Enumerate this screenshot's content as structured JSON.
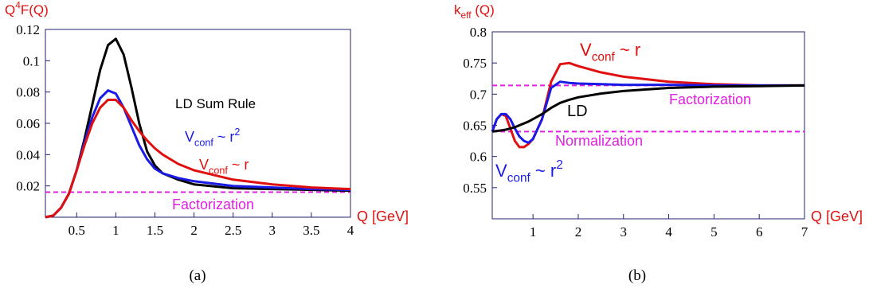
{
  "chart_data": [
    {
      "type": "line",
      "caption": "(a)",
      "xlabel": "Q [GeV]",
      "xlabel_color": "#e01010",
      "ylabel": {
        "parts": [
          "Q",
          "4",
          "F(Q)"
        ],
        "styles": [
          "base",
          "sup",
          "base"
        ],
        "color": "#e01010"
      },
      "xlim": [
        0.1,
        4
      ],
      "ylim": [
        0,
        0.12
      ],
      "xticks": [
        0.5,
        1,
        1.5,
        2,
        2.5,
        3,
        3.5,
        4
      ],
      "yticks": [
        0.02,
        0.04,
        0.06,
        0.08,
        0.1,
        0.12
      ],
      "x": [
        0.1,
        0.2,
        0.3,
        0.4,
        0.5,
        0.6,
        0.7,
        0.8,
        0.9,
        1.0,
        1.1,
        1.2,
        1.3,
        1.4,
        1.5,
        1.6,
        1.8,
        2.0,
        2.5,
        3.0,
        3.5,
        4.0
      ],
      "series": [
        {
          "color": "#000000",
          "label": {
            "parts": [
              "LD Sum  Rule"
            ],
            "styles": [
              "base"
            ]
          },
          "values": [
            0,
            0.001,
            0.006,
            0.015,
            0.03,
            0.05,
            0.072,
            0.094,
            0.11,
            0.114,
            0.104,
            0.083,
            0.06,
            0.042,
            0.033,
            0.028,
            0.024,
            0.021,
            0.0185,
            0.018,
            0.0175,
            0.017
          ]
        },
        {
          "color": "#1a1ae6",
          "label": {
            "parts": [
              "V",
              "conf",
              "  ~ r",
              "2"
            ],
            "styles": [
              "base",
              "sub",
              "base",
              "sup"
            ]
          },
          "values": [
            0,
            0.001,
            0.006,
            0.015,
            0.03,
            0.048,
            0.064,
            0.076,
            0.081,
            0.079,
            0.07,
            0.058,
            0.046,
            0.037,
            0.031,
            0.028,
            0.025,
            0.023,
            0.02,
            0.019,
            0.018,
            0.0175
          ]
        },
        {
          "color": "#e01010",
          "label": {
            "parts": [
              "V",
              "conf",
              "  ~ r"
            ],
            "styles": [
              "base",
              "sub",
              "base"
            ]
          },
          "values": [
            0,
            0.001,
            0.006,
            0.015,
            0.03,
            0.046,
            0.06,
            0.07,
            0.075,
            0.075,
            0.07,
            0.062,
            0.055,
            0.049,
            0.044,
            0.04,
            0.034,
            0.03,
            0.024,
            0.021,
            0.019,
            0.018
          ]
        }
      ],
      "hlines": [
        {
          "label": "Factorization",
          "value": 0.016,
          "color": "#e020e0"
        }
      ]
    },
    {
      "type": "line",
      "caption": "(b)",
      "xlabel": "Q [GeV]",
      "xlabel_color": "#e01010",
      "ylabel": {
        "parts": [
          "k",
          "eff",
          " (Q)"
        ],
        "styles": [
          "base",
          "sub",
          "base"
        ],
        "color": "#e01010"
      },
      "xlim": [
        0.1,
        7
      ],
      "ylim": [
        0.5,
        0.8
      ],
      "xticks": [
        1,
        2,
        3,
        4,
        5,
        6,
        7
      ],
      "yticks": [
        0.55,
        0.6,
        0.65,
        0.7,
        0.75,
        0.8
      ],
      "x": [
        0.1,
        0.2,
        0.3,
        0.4,
        0.5,
        0.6,
        0.7,
        0.8,
        0.9,
        1.0,
        1.2,
        1.4,
        1.6,
        1.8,
        2.0,
        2.5,
        3,
        4,
        5,
        6,
        7
      ],
      "series": [
        {
          "color": "#e01010",
          "label": {
            "parts": [
              "V",
              "conf",
              "  ~ r"
            ],
            "styles": [
              "base",
              "sub",
              "base"
            ]
          },
          "values": [
            0.64,
            0.66,
            0.668,
            0.665,
            0.645,
            0.625,
            0.615,
            0.615,
            0.62,
            0.628,
            0.66,
            0.72,
            0.748,
            0.75,
            0.745,
            0.735,
            0.728,
            0.72,
            0.716,
            0.714,
            0.714
          ]
        },
        {
          "color": "#1a1ae6",
          "label": {
            "parts": [
              "V",
              "conf",
              "  ~ r",
              "2"
            ],
            "styles": [
              "base",
              "sub",
              "base",
              "sup"
            ]
          },
          "values": [
            0.64,
            0.66,
            0.668,
            0.668,
            0.66,
            0.645,
            0.632,
            0.625,
            0.622,
            0.628,
            0.66,
            0.71,
            0.72,
            0.718,
            0.717,
            0.716,
            0.715,
            0.715,
            0.714,
            0.714,
            0.714
          ]
        },
        {
          "color": "#000000",
          "label": {
            "parts": [
              "LD"
            ],
            "styles": [
              "base"
            ]
          },
          "values": [
            0.64,
            0.641,
            0.642,
            0.643,
            0.645,
            0.647,
            0.65,
            0.653,
            0.656,
            0.66,
            0.668,
            0.678,
            0.686,
            0.691,
            0.695,
            0.701,
            0.705,
            0.71,
            0.712,
            0.713,
            0.714
          ]
        }
      ],
      "hlines": [
        {
          "label": "Factorization",
          "value": 0.714,
          "color": "#e020e0"
        },
        {
          "label": "Normalization",
          "value": 0.64,
          "color": "#e020e0"
        }
      ]
    }
  ]
}
